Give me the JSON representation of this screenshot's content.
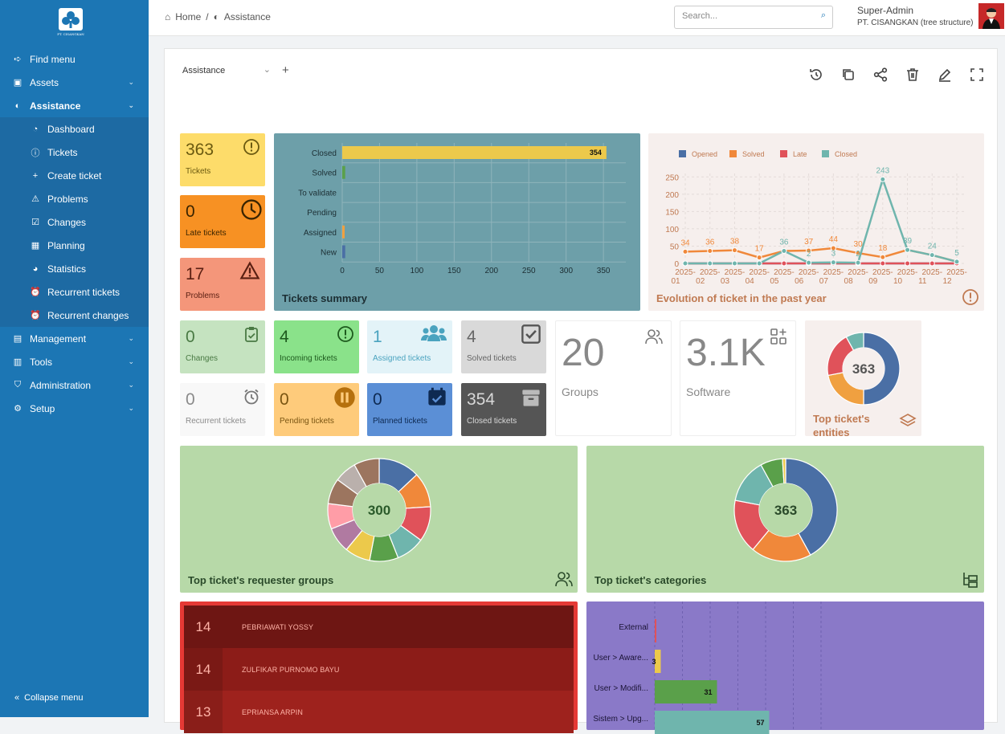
{
  "sidebar": {
    "logo_text": "PT. CISANGKAN",
    "items": [
      {
        "label": "Find menu",
        "icon": "arrow-right-icon"
      },
      {
        "label": "Assets",
        "icon": "box-icon"
      },
      {
        "label": "Assistance",
        "icon": "headset-icon"
      },
      {
        "label": "Dashboard",
        "icon": "gauge-icon"
      },
      {
        "label": "Tickets",
        "icon": "alert-circle-icon"
      },
      {
        "label": "Create ticket",
        "icon": "plus-icon"
      },
      {
        "label": "Problems",
        "icon": "warning-icon"
      },
      {
        "label": "Changes",
        "icon": "clipboard-check-icon"
      },
      {
        "label": "Planning",
        "icon": "calendar-clock-icon"
      },
      {
        "label": "Statistics",
        "icon": "pie-icon"
      },
      {
        "label": "Recurrent tickets",
        "icon": "alarm-icon"
      },
      {
        "label": "Recurrent changes",
        "icon": "alarm-icon"
      },
      {
        "label": "Management",
        "icon": "wallet-icon"
      },
      {
        "label": "Tools",
        "icon": "briefcase-icon"
      },
      {
        "label": "Administration",
        "icon": "shield-icon"
      },
      {
        "label": "Setup",
        "icon": "gear-icon"
      }
    ],
    "collapse_label": "Collapse menu"
  },
  "header": {
    "breadcrumb": [
      "Home",
      "/",
      "Assistance"
    ],
    "search_placeholder": "Search...",
    "user_name": "Super-Admin",
    "entity": "PT. CISANGKAN (tree structure)"
  },
  "dashboard": {
    "selector": "Assistance",
    "kpi": {
      "tickets": {
        "value": "363",
        "label": "Tickets"
      },
      "late": {
        "value": "0",
        "label": "Late tickets"
      },
      "problems": {
        "value": "17",
        "label": "Problems"
      },
      "changes": {
        "value": "0",
        "label": "Changes"
      },
      "incoming": {
        "value": "4",
        "label": "Incoming tickets"
      },
      "assigned": {
        "value": "1",
        "label": "Assigned tickets"
      },
      "solved": {
        "value": "4",
        "label": "Solved tickets"
      },
      "recurrent": {
        "value": "0",
        "label": "Recurrent tickets"
      },
      "pending": {
        "value": "0",
        "label": "Pending tickets"
      },
      "planned": {
        "value": "0",
        "label": "Planned tickets"
      },
      "closed": {
        "value": "354",
        "label": "Closed tickets"
      },
      "groups": {
        "value": "20",
        "label": "Groups"
      },
      "software": {
        "value": "3.1K",
        "label": "Software"
      }
    },
    "donut_titles": {
      "entities": "Top ticket's entities",
      "requester_groups": "Top ticket's requester groups",
      "categories": "Top ticket's categories"
    },
    "requesters": [
      {
        "count": "14",
        "name": "PEBRIAWATI YOSSY"
      },
      {
        "count": "14",
        "name": "ZULFIKAR PURNOMO BAYU"
      },
      {
        "count": "13",
        "name": "EPRIANSA ARPIN"
      }
    ]
  },
  "chart_data": [
    {
      "type": "bar",
      "title": "Tickets summary",
      "orientation": "horizontal",
      "categories": [
        "Closed",
        "Solved",
        "To validate",
        "Pending",
        "Assigned",
        "New"
      ],
      "values": [
        354,
        4,
        0,
        0,
        1,
        4
      ],
      "colors": [
        "#ecc94b",
        "#5aa04a",
        "#6f9fa8",
        "#6f9fa8",
        "#f0a040",
        "#4a6fa5"
      ],
      "xticks": [
        0,
        50,
        100,
        150,
        200,
        250,
        300,
        350
      ],
      "xlim": [
        0,
        380
      ]
    },
    {
      "type": "line",
      "title": "Evolution of ticket in the past year",
      "legend_position": "top-left",
      "categories": [
        "2025-01",
        "2025-02",
        "2025-03",
        "2025-04",
        "2025-05",
        "2025-06",
        "2025-07",
        "2025-08",
        "2025-09",
        "2025-10",
        "2025-11",
        "2025-12"
      ],
      "yticks": [
        0,
        50,
        100,
        150,
        200,
        250
      ],
      "ylim": [
        0,
        260
      ],
      "series": [
        {
          "name": "Opened",
          "color": "#4a6fa5",
          "values": [
            0,
            0,
            0,
            0,
            0,
            0,
            0,
            0,
            0,
            0,
            0,
            0
          ]
        },
        {
          "name": "Solved",
          "color": "#f0883a",
          "values": [
            34,
            36,
            38,
            17,
            36,
            37,
            44,
            30,
            18,
            39,
            24,
            5
          ]
        },
        {
          "name": "Late",
          "color": "#e0525a",
          "values": [
            0,
            0,
            0,
            0,
            0,
            0,
            0,
            0,
            0,
            0,
            0,
            0
          ]
        },
        {
          "name": "Closed",
          "color": "#6fb5ad",
          "values": [
            0,
            0,
            0,
            0,
            36,
            2,
            3,
            2,
            243,
            39,
            24,
            5
          ]
        }
      ],
      "labels": [
        "34",
        "36",
        "38",
        "17",
        "36",
        "37",
        "44",
        "30",
        "243",
        "18",
        "39",
        "24",
        "2",
        "3",
        "2",
        "5"
      ]
    },
    {
      "type": "pie",
      "title": "Top ticket's entities",
      "center_label": "363",
      "values": [
        50,
        22,
        20,
        8
      ],
      "colors": [
        "#4a6fa5",
        "#f0a040",
        "#e0525a",
        "#6fb5ad"
      ]
    },
    {
      "type": "pie",
      "title": "Top ticket's requester groups",
      "center_label": "300",
      "values": [
        13,
        11,
        11,
        9,
        9,
        8,
        8,
        8,
        8,
        7,
        8
      ],
      "colors": [
        "#4a6fa5",
        "#f0883a",
        "#e0525a",
        "#6fb5ad",
        "#5aa04a",
        "#ecc94b",
        "#b07aa1",
        "#ff9da7",
        "#9c755f",
        "#bab0ac",
        "#9c755f"
      ]
    },
    {
      "type": "pie",
      "title": "Top ticket's categories",
      "center_label": "363",
      "values": [
        42,
        19,
        17,
        14,
        7,
        1
      ],
      "colors": [
        "#4a6fa5",
        "#f0883a",
        "#e0525a",
        "#6fb5ad",
        "#5aa04a",
        "#ecc94b"
      ]
    },
    {
      "type": "bar",
      "orientation": "horizontal",
      "categories": [
        "External",
        "User > Aware...",
        "User > Modifi...",
        "Sistem > Upg..."
      ],
      "values": [
        0,
        3,
        31,
        57
      ],
      "colors": [
        "#e0525a",
        "#ecc94b",
        "#5aa04a",
        "#6fb5ad"
      ]
    }
  ]
}
